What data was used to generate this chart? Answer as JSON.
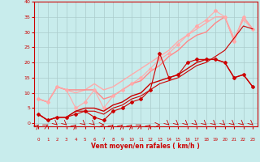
{
  "bg_color": "#c8ecec",
  "grid_color": "#aacccc",
  "xlabel": "Vent moyen/en rafales ( km/h )",
  "xlabel_color": "#cc0000",
  "tick_color": "#cc0000",
  "xlim": [
    -0.5,
    23.5
  ],
  "ylim": [
    -1,
    40
  ],
  "xticks": [
    0,
    1,
    2,
    3,
    4,
    5,
    6,
    7,
    8,
    9,
    10,
    11,
    12,
    13,
    14,
    15,
    16,
    17,
    18,
    19,
    20,
    21,
    22,
    23
  ],
  "yticks": [
    0,
    5,
    10,
    15,
    20,
    25,
    30,
    35,
    40
  ],
  "lines": [
    {
      "x": [
        0,
        1,
        2,
        3,
        4,
        5,
        6,
        7,
        8,
        9,
        10,
        11,
        12,
        13,
        14,
        15,
        16,
        17,
        18,
        19,
        20,
        21,
        22,
        23
      ],
      "y": [
        3,
        1,
        2,
        2,
        3,
        4,
        2,
        1,
        4,
        5,
        7,
        8,
        11,
        23,
        15,
        16,
        20,
        21,
        21,
        21,
        20,
        15,
        16,
        12
      ],
      "color": "#cc0000",
      "linewidth": 0.8,
      "marker": "D",
      "markersize": 2.0,
      "zorder": 5
    },
    {
      "x": [
        0,
        1,
        2,
        3,
        4,
        5,
        6,
        7,
        8,
        9,
        10,
        11,
        12,
        13,
        14,
        15,
        16,
        17,
        18,
        19,
        20,
        21,
        22,
        23
      ],
      "y": [
        3,
        1,
        2,
        2,
        4,
        5,
        5,
        4,
        6,
        7,
        9,
        10,
        13,
        14,
        15,
        16,
        18,
        20,
        21,
        21,
        20,
        15,
        16,
        12
      ],
      "color": "#cc0000",
      "linewidth": 1.0,
      "marker": null,
      "markersize": 0,
      "zorder": 4
    },
    {
      "x": [
        0,
        1,
        2,
        3,
        4,
        5,
        6,
        7,
        8,
        9,
        10,
        11,
        12,
        13,
        14,
        15,
        16,
        17,
        18,
        19,
        20,
        21,
        22,
        23
      ],
      "y": [
        8,
        7,
        12,
        11,
        5,
        7,
        11,
        5,
        9,
        11,
        13,
        15,
        18,
        21,
        23,
        26,
        29,
        32,
        34,
        37,
        35,
        27,
        35,
        31
      ],
      "color": "#ffaaaa",
      "linewidth": 0.8,
      "marker": "D",
      "markersize": 2.0,
      "zorder": 3
    },
    {
      "x": [
        0,
        1,
        2,
        3,
        4,
        5,
        6,
        7,
        8,
        9,
        10,
        11,
        12,
        13,
        14,
        15,
        16,
        17,
        18,
        19,
        20,
        21,
        22,
        23
      ],
      "y": [
        8,
        7,
        12,
        11,
        10,
        11,
        13,
        11,
        12,
        14,
        16,
        18,
        20,
        22,
        24,
        27,
        29,
        31,
        33,
        35,
        35,
        28,
        34,
        31
      ],
      "color": "#ffaaaa",
      "linewidth": 1.0,
      "marker": null,
      "markersize": 0,
      "zorder": 2
    },
    {
      "x": [
        0,
        1,
        2,
        3,
        4,
        5,
        6,
        7,
        8,
        9,
        10,
        11,
        12,
        13,
        14,
        15,
        16,
        17,
        18,
        19,
        20,
        21,
        22,
        23
      ],
      "y": [
        8,
        7,
        12,
        11,
        11,
        11,
        11,
        8,
        9,
        11,
        13,
        14,
        17,
        19,
        22,
        24,
        27,
        29,
        30,
        33,
        35,
        27,
        35,
        31
      ],
      "color": "#ff8888",
      "linewidth": 1.0,
      "marker": null,
      "markersize": 0,
      "zorder": 2
    },
    {
      "x": [
        0,
        1,
        2,
        3,
        4,
        5,
        6,
        7,
        8,
        9,
        10,
        11,
        12,
        13,
        14,
        15,
        16,
        17,
        18,
        19,
        20,
        21,
        22,
        23
      ],
      "y": [
        3,
        1,
        2,
        2,
        4,
        4,
        4,
        3,
        5,
        6,
        8,
        9,
        11,
        13,
        14,
        15,
        17,
        19,
        20,
        22,
        24,
        28,
        32,
        31
      ],
      "color": "#cc0000",
      "linewidth": 0.8,
      "marker": null,
      "markersize": 0,
      "zorder": 3
    }
  ],
  "wind_arrow_angles": [
    45,
    60,
    135,
    135,
    45,
    135,
    135,
    90,
    45,
    45,
    45,
    60,
    45,
    90,
    135,
    135,
    135,
    135,
    135,
    135,
    135,
    135,
    135,
    135
  ]
}
